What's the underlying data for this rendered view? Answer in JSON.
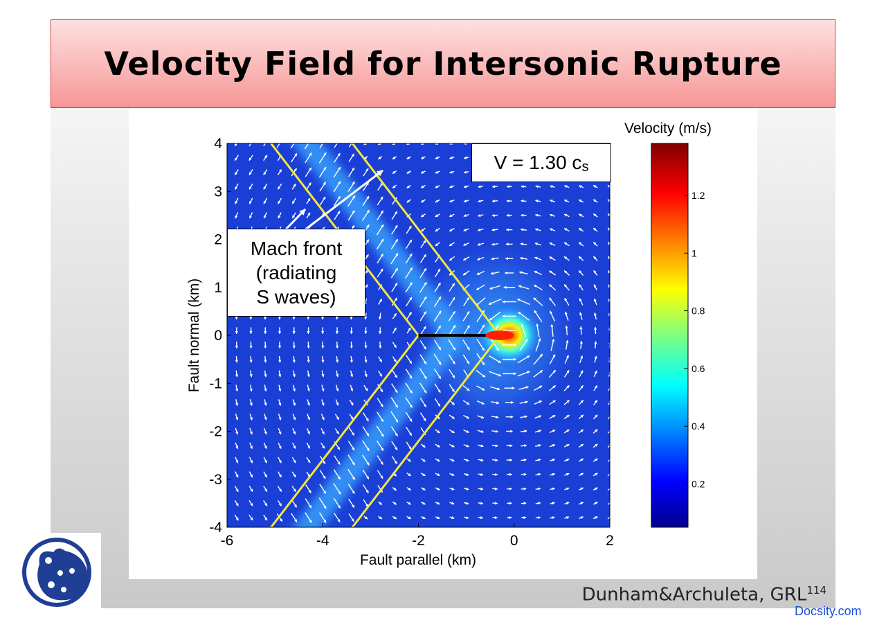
{
  "slide": {
    "title": "Velocity Field for Intersonic Rupture",
    "citation": "Dunham&Archuleta, GRL",
    "page_number": "114",
    "watermark": "Docsity.com"
  },
  "annotations": {
    "mach_front_lines": [
      "Mach front",
      "(radiating",
      "S waves)"
    ],
    "rupture_speed_prefix": "V = 1.30 c",
    "rupture_speed_subscript": "s"
  },
  "chart_data": {
    "type": "heatmap",
    "title": "",
    "xlabel": "Fault parallel (km)",
    "ylabel": "Fault normal (km)",
    "xlim": [
      -6,
      2
    ],
    "ylim": [
      -4,
      4
    ],
    "x_ticks": [
      -6,
      -4,
      -2,
      0,
      2
    ],
    "y_ticks": [
      4,
      3,
      2,
      1,
      0,
      -1,
      -2,
      -3,
      -4
    ],
    "colorbar": {
      "label": "Velocity (m/s)",
      "ticks": [
        1.2,
        1,
        0.8,
        0.6,
        0.4,
        0.2
      ],
      "range": [
        0.05,
        1.38
      ],
      "colormap": "jet"
    },
    "rupture_tip": {
      "x": -0.1,
      "y": 0
    },
    "rupture_segment": {
      "x_start": -2,
      "x_end": -0.4,
      "y": 0
    },
    "mach_front": {
      "apex_x": -2.0,
      "offset_x": 1.7,
      "slope_ratio": 0.77,
      "color": "#f5e83a"
    },
    "grid": false,
    "legend": "none"
  },
  "colors": {
    "title_bar": "#f79696",
    "field_background": "#1a3fd6",
    "arrow": "#ffffff",
    "watermark": "#1a4fd6",
    "logo": "#1e3f94"
  }
}
